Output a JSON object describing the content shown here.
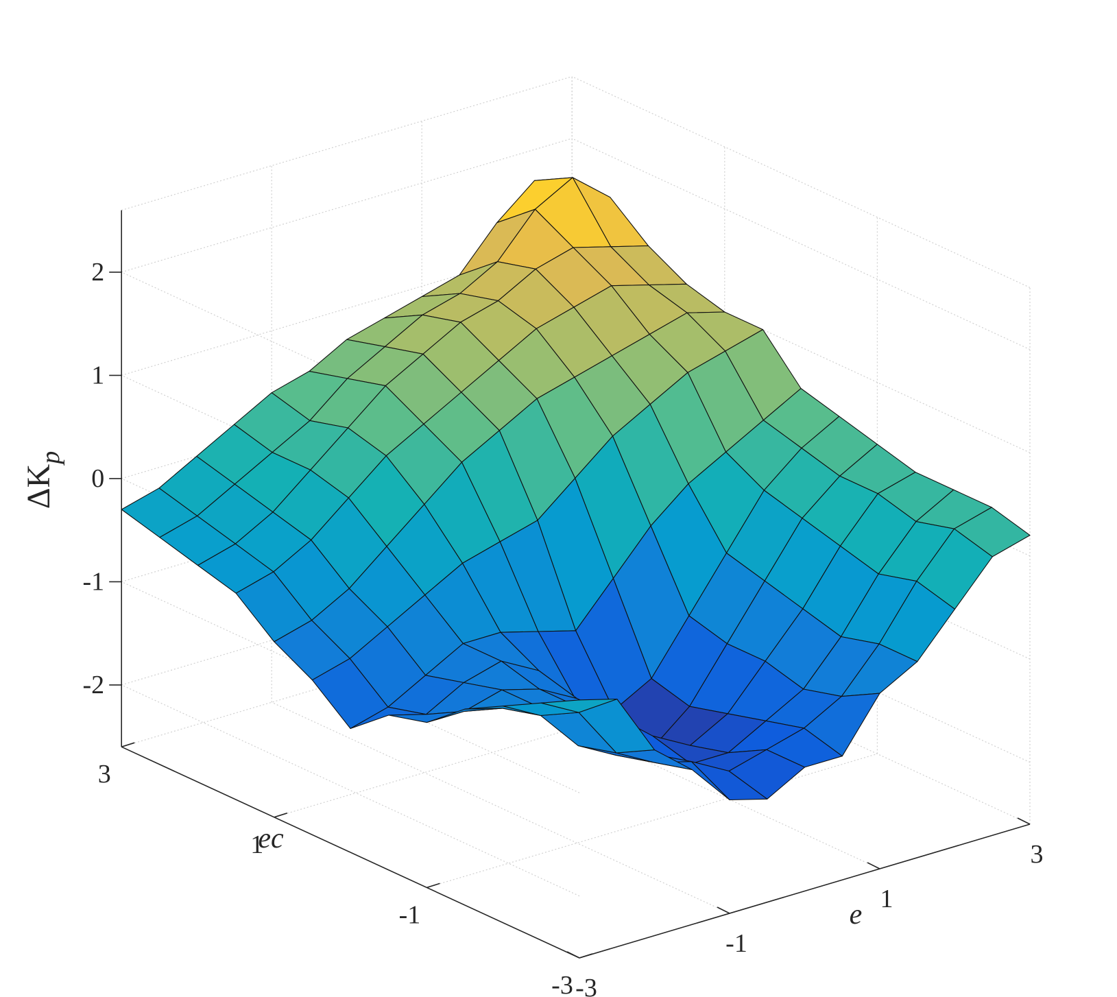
{
  "chart_data": {
    "type": "surface3d",
    "title": "",
    "xlabel": "e",
    "ylabel": "ec",
    "zlabel_main": "ΔK",
    "zlabel_sub": "p",
    "xlim": [
      -3,
      3
    ],
    "ylim": [
      -3,
      3
    ],
    "zlim": [
      -2.6,
      2.6
    ],
    "x_ticks": [
      -3,
      -1,
      1,
      3
    ],
    "x_tick_labels": [
      "-3",
      "-1",
      "1",
      "3"
    ],
    "y_ticks": [
      -3,
      -1,
      1,
      3
    ],
    "y_tick_labels": [
      "-3",
      "-1",
      "1",
      "3"
    ],
    "z_ticks": [
      -2,
      -1,
      0,
      1,
      2
    ],
    "z_tick_labels": [
      "-2",
      "-1",
      "0",
      "1",
      "2"
    ],
    "grid": true,
    "colormap": "parula",
    "x": [
      -3,
      -2.5,
      -2,
      -1.5,
      -1,
      -0.5,
      0,
      0.5,
      1,
      1.5,
      2,
      2.5,
      3
    ],
    "y": [
      -3,
      -2.5,
      -2,
      -1.5,
      -1,
      -0.5,
      0,
      0.5,
      1,
      1.5,
      2,
      2.5,
      3
    ],
    "z_note_rows_are_y_cols_are_x": true,
    "z": [
      [
        -0.1,
        -0.2,
        -0.8,
        -1.1,
        -1.5,
        -1.6,
        -1.4,
        -1.4,
        -0.9,
        -0.7,
        -0.3,
        0.1,
        0.2
      ],
      [
        -0.3,
        -0.5,
        -1.0,
        -1.2,
        -1.3,
        -1.5,
        -1.4,
        -1.3,
        -1.1,
        -0.7,
        -0.2,
        0.2,
        0.3
      ],
      [
        -0.5,
        -0.7,
        -1.1,
        -1.3,
        -1.4,
        -1.6,
        -1.6,
        -1.4,
        -1.2,
        -0.8,
        -0.3,
        0.1,
        0.3
      ],
      [
        -0.7,
        -0.8,
        -0.9,
        -1.0,
        -1.2,
        -1.5,
        -1.7,
        -1.5,
        -1.1,
        -0.7,
        -0.2,
        0.2,
        0.3
      ],
      [
        -1.0,
        -1.0,
        -0.9,
        -1.0,
        -1.2,
        -1.6,
        -1.9,
        -1.6,
        -1.1,
        -0.6,
        -0.1,
        0.2,
        0.4
      ],
      [
        -1.1,
        -1.2,
        -1.0,
        -0.9,
        -1.1,
        -1.5,
        -1.7,
        -1.5,
        -1.0,
        -0.5,
        0.0,
        0.3,
        0.5
      ],
      [
        -1.4,
        -1.3,
        -1.1,
        -0.9,
        -0.9,
        -1.0,
        -1.1,
        -0.7,
        -0.3,
        0.0,
        0.2,
        0.4,
        0.6
      ],
      [
        -1.1,
        -1.0,
        -0.8,
        -0.6,
        -0.4,
        -0.3,
        -0.2,
        0.1,
        0.4,
        0.6,
        0.8,
        0.9,
        1.0
      ],
      [
        -0.9,
        -0.8,
        -0.6,
        -0.3,
        0.0,
        0.3,
        0.5,
        0.7,
        0.8,
        0.9,
        1.0,
        1.1,
        1.0
      ],
      [
        -0.6,
        -0.5,
        -0.3,
        0.0,
        0.3,
        0.5,
        0.7,
        0.9,
        1.1,
        1.2,
        1.3,
        1.2,
        1.1
      ],
      [
        -0.5,
        -0.4,
        -0.2,
        0.1,
        0.4,
        0.7,
        0.9,
        1.1,
        1.2,
        1.4,
        1.5,
        1.4,
        1.3
      ],
      [
        -0.4,
        -0.3,
        -0.1,
        0.1,
        0.3,
        0.6,
        0.8,
        1.0,
        1.1,
        1.3,
        1.7,
        1.9,
        1.6
      ],
      [
        -0.3,
        -0.2,
        0.0,
        0.2,
        0.4,
        0.5,
        0.7,
        0.8,
        0.9,
        1.0,
        1.4,
        1.7,
        1.5
      ]
    ]
  }
}
